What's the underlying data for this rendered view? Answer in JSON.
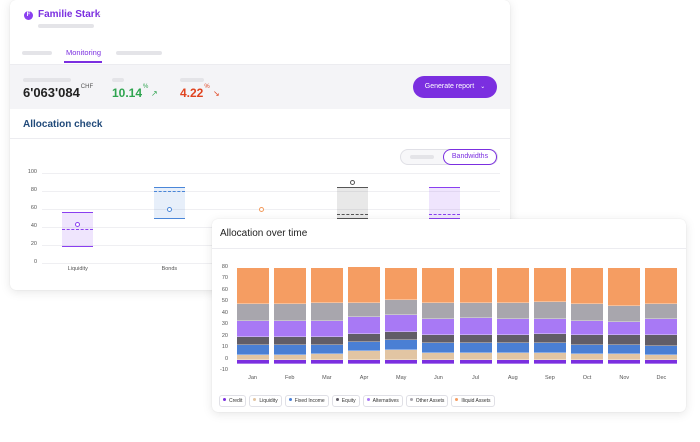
{
  "header": {
    "client_name": "Familie Stark",
    "client_initial": "F"
  },
  "tabs": {
    "active": "Monitoring"
  },
  "kpi": {
    "value": "6'063'084",
    "currency": "CHF",
    "return_positive": "10.14",
    "return_positive_unit": "%",
    "return_positive_arrow": "↗",
    "return_negative": "4.22",
    "return_negative_unit": "%",
    "return_negative_arrow": "↘",
    "generate_report_label": "Generate report",
    "colors": {
      "positive": "#2ea44f",
      "negative": "#e0431f",
      "accent": "#7b2fe0"
    }
  },
  "allocation_check": {
    "title": "Allocation check",
    "toggle_active": "Bandwidths",
    "chart_data": {
      "type": "bandwidth",
      "y_ticks": [
        "100",
        "80",
        "60",
        "40",
        "20",
        "0"
      ],
      "ylim": [
        0,
        100
      ],
      "categories": [
        "Liquidity",
        "Bonds",
        "",
        "",
        ""
      ],
      "series": [
        {
          "band": [
            20,
            57
          ],
          "target": 38,
          "actual": 43,
          "color": "#8a3ff0"
        },
        {
          "band": [
            51,
            85
          ],
          "target": 80,
          "actual": 60,
          "color": "#4a86d8"
        },
        {
          "band": null,
          "target": null,
          "actual": 60,
          "color": "#f29a5b"
        },
        {
          "band": [
            51,
            85
          ],
          "target": 55,
          "actual": 90,
          "color": "#555555"
        },
        {
          "band": [
            51,
            85
          ],
          "target": 55,
          "actual": null,
          "color": "#8a3ff0"
        }
      ]
    }
  },
  "allocation_over_time": {
    "title": "Allocation over time",
    "chart_data": {
      "type": "bar",
      "stacked": true,
      "categories": [
        "Jan",
        "Feb",
        "Mar",
        "Apr",
        "May",
        "Jun",
        "Jul",
        "Aug",
        "Sep",
        "Oct",
        "Nov",
        "Dec"
      ],
      "y_ticks": [
        "80",
        "70",
        "60",
        "50",
        "40",
        "30",
        "20",
        "10",
        "0",
        "-10"
      ],
      "ylim": [
        -10,
        85
      ],
      "series": [
        {
          "name": "Credit",
          "color": "#7b2fe0",
          "values": [
            -4,
            -4,
            -4,
            -4,
            -4,
            -4,
            -4,
            -4,
            -4,
            -4,
            -4,
            -4
          ]
        },
        {
          "name": "Liquidity",
          "color": "#e2c5a3",
          "values": [
            4,
            4,
            5,
            7,
            8,
            6,
            6,
            6,
            6,
            5,
            5,
            4
          ]
        },
        {
          "name": "Fixed Income",
          "color": "#4a7fd4",
          "values": [
            9,
            9,
            8,
            8,
            9,
            8,
            8,
            8,
            8,
            8,
            8,
            8
          ]
        },
        {
          "name": "Equity",
          "color": "#615d67",
          "values": [
            7,
            7,
            7,
            7,
            7,
            7,
            7,
            7,
            8,
            8,
            8,
            9
          ]
        },
        {
          "name": "Alternatives",
          "color": "#a879f5",
          "values": [
            14,
            14,
            14,
            15,
            15,
            14,
            15,
            14,
            13,
            13,
            12,
            14
          ]
        },
        {
          "name": "Other Assets",
          "color": "#a8a6ad",
          "values": [
            14,
            14,
            15,
            12,
            13,
            14,
            13,
            14,
            15,
            14,
            14,
            13
          ]
        },
        {
          "name": "Iliquid Assets",
          "color": "#f59d62",
          "values": [
            32,
            32,
            31,
            32,
            28,
            31,
            31,
            31,
            30,
            32,
            33,
            32
          ]
        }
      ]
    }
  }
}
